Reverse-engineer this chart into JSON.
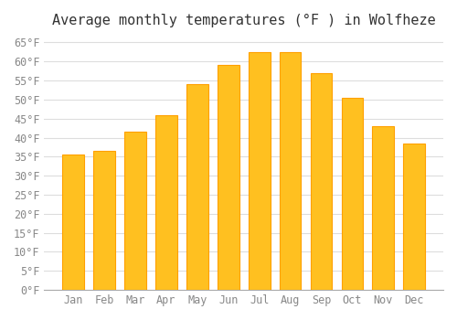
{
  "title": "Average monthly temperatures (°F ) in Wolfheze",
  "months": [
    "Jan",
    "Feb",
    "Mar",
    "Apr",
    "May",
    "Jun",
    "Jul",
    "Aug",
    "Sep",
    "Oct",
    "Nov",
    "Dec"
  ],
  "values": [
    35.5,
    36.5,
    41.5,
    46.0,
    54.0,
    59.0,
    62.5,
    62.5,
    57.0,
    50.5,
    43.0,
    38.5
  ],
  "bar_color": "#FFC020",
  "bar_edge_color": "#FFA000",
  "background_color": "#FFFFFF",
  "grid_color": "#DDDDDD",
  "text_color": "#888888",
  "ylim": [
    0,
    67
  ],
  "yticks": [
    0,
    5,
    10,
    15,
    20,
    25,
    30,
    35,
    40,
    45,
    50,
    55,
    60,
    65
  ],
  "title_fontsize": 11,
  "tick_fontsize": 8.5,
  "font_family": "monospace"
}
